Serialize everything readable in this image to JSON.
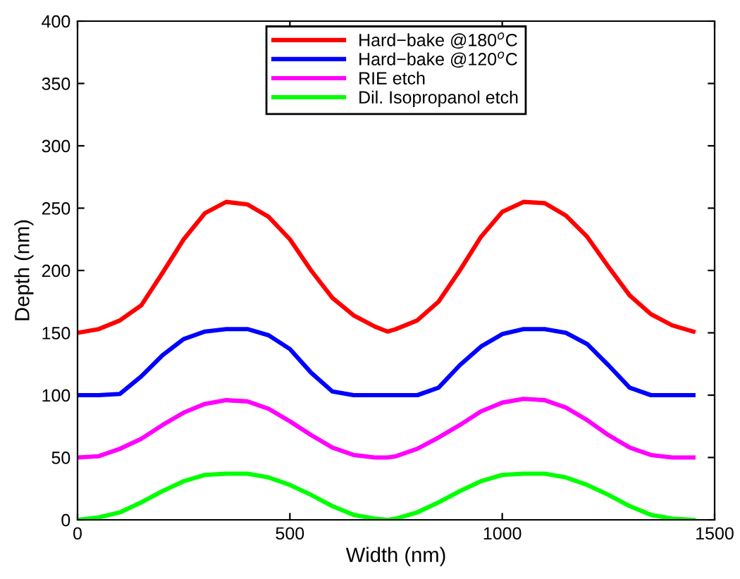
{
  "chart_data": {
    "type": "line",
    "xlabel": "Width (nm)",
    "ylabel": "Depth (nm)",
    "x": [
      0,
      50,
      100,
      150,
      200,
      250,
      300,
      350,
      400,
      450,
      500,
      550,
      600,
      650,
      700,
      730,
      750,
      800,
      850,
      900,
      950,
      1000,
      1050,
      1100,
      1150,
      1200,
      1250,
      1300,
      1350,
      1400,
      1450
    ],
    "series": [
      {
        "name": "Hard−bake @180$^{o}$C",
        "color": "#ff0000",
        "values": [
          150,
          153,
          160,
          172,
          198,
          225,
          246,
          255,
          253,
          243,
          225,
          200,
          178,
          164,
          155,
          151,
          153,
          160,
          175,
          200,
          227,
          247,
          255,
          254,
          244,
          227,
          203,
          180,
          165,
          156,
          151
        ]
      },
      {
        "name": "Hard−bake @120$^{o}$C",
        "color": "#0000ff",
        "values": [
          100,
          100,
          101,
          115,
          132,
          145,
          151,
          153,
          153,
          148,
          137,
          118,
          103,
          100,
          100,
          100,
          100,
          100,
          106,
          124,
          139,
          149,
          153,
          153,
          150,
          141,
          124,
          106,
          100,
          100,
          100
        ]
      },
      {
        "name": "RIE etch",
        "color": "#ff00ff",
        "values": [
          50,
          51,
          57,
          65,
          76,
          86,
          93,
          96,
          95,
          89,
          79,
          68,
          58,
          52,
          50,
          50,
          51,
          57,
          66,
          76,
          87,
          94,
          97,
          96,
          90,
          80,
          68,
          58,
          52,
          50,
          50
        ]
      },
      {
        "name": "Dil. Isopropanol etch",
        "color": "#00ff00",
        "values": [
          0,
          2,
          6,
          14,
          23,
          31,
          36,
          37,
          37,
          34,
          28,
          20,
          11,
          4,
          1,
          0,
          1,
          6,
          14,
          23,
          31,
          36,
          37,
          37,
          34,
          28,
          20,
          11,
          4,
          1,
          0
        ]
      }
    ],
    "xlim": [
      0,
      1500
    ],
    "xticks": [
      0,
      500,
      1000,
      1500
    ],
    "ylim": [
      0,
      400
    ],
    "yticks": [
      0,
      50,
      100,
      150,
      200,
      250,
      300,
      350,
      400
    ],
    "legend": "top",
    "grid": false,
    "marker": "none",
    "line_style": "solid"
  }
}
